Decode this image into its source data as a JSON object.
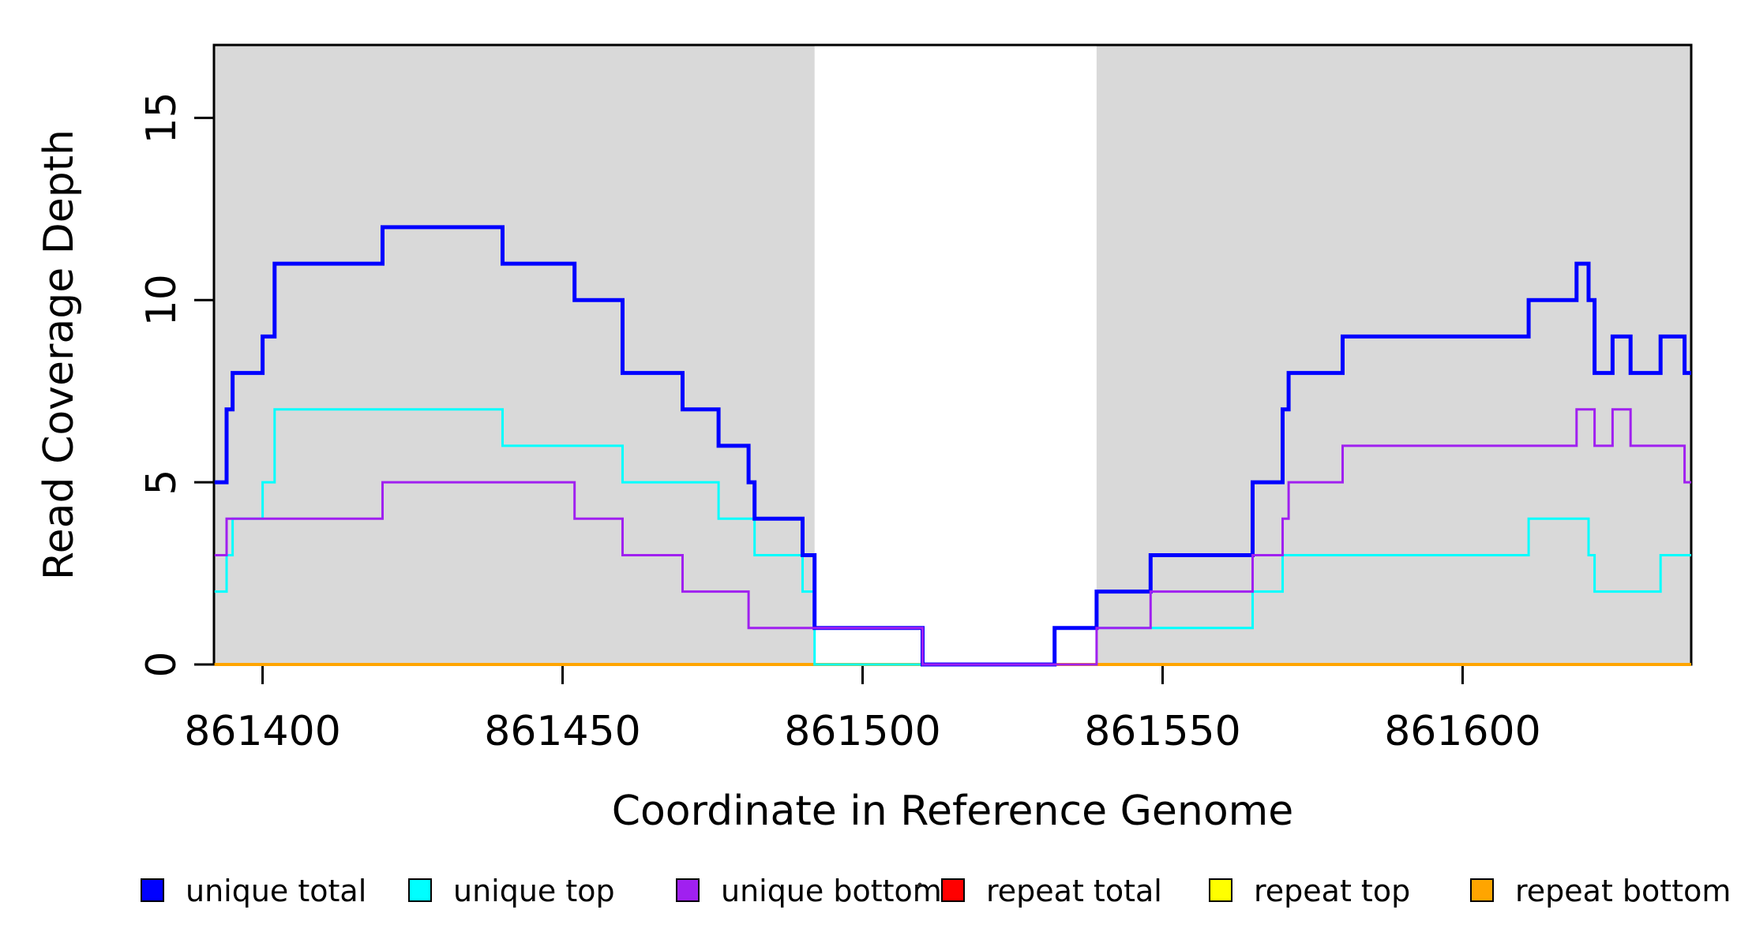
{
  "chart_data": {
    "type": "line",
    "subtype": "step",
    "title": "",
    "xlabel": "Coordinate in Reference Genome",
    "ylabel": "Read Coverage Depth",
    "xlim": [
      861391.9,
      861638.1
    ],
    "ylim": [
      0,
      17.0
    ],
    "grid": false,
    "x_ticks": [
      861400,
      861450,
      861500,
      861550,
      861600
    ],
    "y_ticks": [
      0,
      5,
      10,
      15
    ],
    "background_regions": [
      {
        "name": "left-shaded-region",
        "x0": 861391.9,
        "x1": 861492.0,
        "color": "#d9d9d9"
      },
      {
        "name": "right-shaded-region",
        "x0": 861539.0,
        "x1": 861638.1,
        "color": "#d9d9d9"
      }
    ],
    "series": [
      {
        "name": "repeat total",
        "color": "#ff0000",
        "width": 3,
        "points": [
          [
            861392,
            0
          ]
        ]
      },
      {
        "name": "repeat top",
        "color": "#ffff00",
        "width": 3,
        "points": [
          [
            861392,
            0
          ]
        ]
      },
      {
        "name": "repeat bottom",
        "color": "#ffa500",
        "width": 4,
        "points": [
          [
            861392,
            0
          ]
        ]
      },
      {
        "name": "unique top",
        "color": "#00ffff",
        "width": 3,
        "points": [
          [
            861392,
            2
          ],
          [
            861394,
            3
          ],
          [
            861395,
            4
          ],
          [
            861400,
            5
          ],
          [
            861402,
            7
          ],
          [
            861440,
            6
          ],
          [
            861460,
            5
          ],
          [
            861476,
            4
          ],
          [
            861482,
            3
          ],
          [
            861490,
            2
          ],
          [
            861492,
            0
          ],
          [
            861532,
            1
          ],
          [
            861565,
            2
          ],
          [
            861570,
            3
          ],
          [
            861611,
            4
          ],
          [
            861621,
            3
          ],
          [
            861622,
            2
          ],
          [
            861633,
            3
          ]
        ]
      },
      {
        "name": "unique total",
        "color": "#0000ff",
        "width": 5,
        "points": [
          [
            861392,
            5
          ],
          [
            861394,
            7
          ],
          [
            861395,
            8
          ],
          [
            861400,
            9
          ],
          [
            861402,
            11
          ],
          [
            861420,
            12
          ],
          [
            861440,
            11
          ],
          [
            861452,
            10
          ],
          [
            861460,
            8
          ],
          [
            861470,
            7
          ],
          [
            861476,
            6
          ],
          [
            861481,
            5
          ],
          [
            861482,
            4
          ],
          [
            861490,
            3
          ],
          [
            861492,
            1
          ],
          [
            861510,
            0
          ],
          [
            861532,
            1
          ],
          [
            861539,
            2
          ],
          [
            861548,
            3
          ],
          [
            861565,
            5
          ],
          [
            861570,
            7
          ],
          [
            861571,
            8
          ],
          [
            861580,
            9
          ],
          [
            861611,
            10
          ],
          [
            861619,
            11
          ],
          [
            861621,
            10
          ],
          [
            861622,
            8
          ],
          [
            861625,
            9
          ],
          [
            861628,
            8
          ],
          [
            861633,
            9
          ],
          [
            861637,
            8
          ]
        ]
      },
      {
        "name": "unique bottom",
        "color": "#a020f0",
        "width": 3,
        "points": [
          [
            861392,
            3
          ],
          [
            861394,
            4
          ],
          [
            861420,
            5
          ],
          [
            861452,
            4
          ],
          [
            861460,
            3
          ],
          [
            861470,
            2
          ],
          [
            861481,
            1
          ],
          [
            861510,
            0
          ],
          [
            861539,
            1
          ],
          [
            861548,
            2
          ],
          [
            861565,
            3
          ],
          [
            861570,
            4
          ],
          [
            861571,
            5
          ],
          [
            861580,
            6
          ],
          [
            861619,
            7
          ],
          [
            861622,
            6
          ],
          [
            861625,
            7
          ],
          [
            861628,
            6
          ],
          [
            861637,
            5
          ]
        ]
      }
    ],
    "legend_position": "bottom",
    "legend": [
      {
        "label": "unique total",
        "color": "#0000ff"
      },
      {
        "label": "unique top",
        "color": "#00ffff"
      },
      {
        "label": "unique bottom",
        "color": "#a020f0"
      },
      {
        "label": "repeat total",
        "color": "#ff0000"
      },
      {
        "label": "repeat top",
        "color": "#ffff00"
      },
      {
        "label": "repeat bottom",
        "color": "#ffa500"
      }
    ]
  }
}
